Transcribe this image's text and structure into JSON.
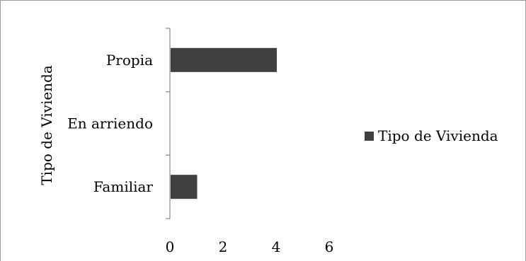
{
  "chart_data": {
    "type": "bar",
    "orientation": "horizontal",
    "categories": [
      "Propia",
      "En arriendo",
      "Familiar"
    ],
    "series": [
      {
        "name": "Tipo de Vivienda",
        "values": [
          4,
          0,
          1
        ],
        "color": "#404040"
      }
    ],
    "ylabel": "Tipo de Vivienda",
    "xlabel": "",
    "xlim": [
      0,
      6
    ],
    "xticks": [
      "0",
      "2",
      "4",
      "6"
    ],
    "grid": false,
    "legend_position": "right"
  }
}
